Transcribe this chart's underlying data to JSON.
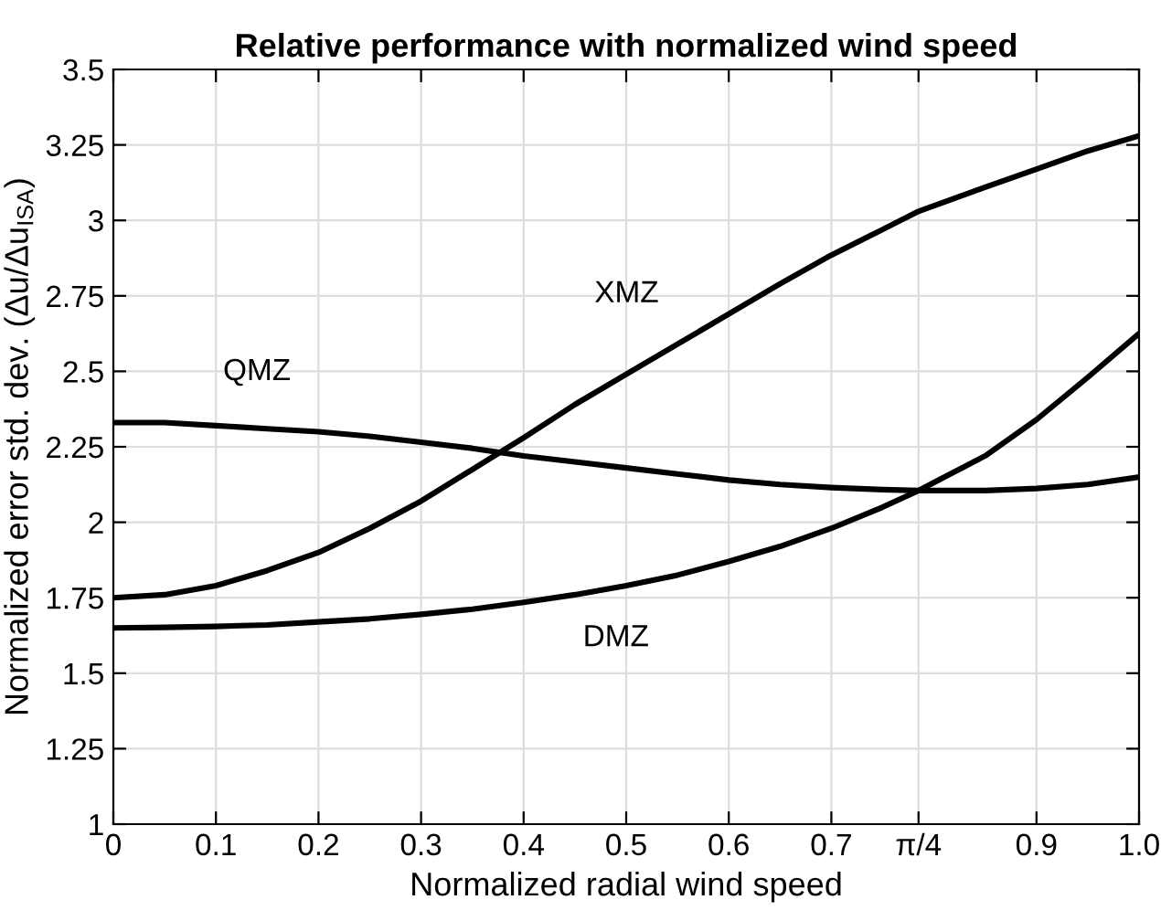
{
  "chart_data": {
    "type": "line",
    "title": "Relative performance with normalized wind speed",
    "xlabel": "Normalized radial wind speed",
    "ylabel": "Normalized error std. dev. (Δu/Δu$_{ISA}$)",
    "x": [
      0,
      0.05,
      0.1,
      0.15,
      0.2,
      0.25,
      0.3,
      0.35,
      0.4,
      0.45,
      0.5,
      0.55,
      0.6,
      0.65,
      0.7,
      0.75,
      0.785,
      0.85,
      0.9,
      0.95,
      1.0
    ],
    "series": [
      {
        "name": "XMZ",
        "color": "#000000",
        "values": [
          1.75,
          1.76,
          1.79,
          1.84,
          1.9,
          1.98,
          2.07,
          2.175,
          2.28,
          2.39,
          2.49,
          2.59,
          2.69,
          2.79,
          2.885,
          2.97,
          3.03,
          3.11,
          3.17,
          3.23,
          3.28
        ]
      },
      {
        "name": "QMZ",
        "color": "#000000",
        "values": [
          2.33,
          2.33,
          2.32,
          2.31,
          2.3,
          2.285,
          2.265,
          2.245,
          2.22,
          2.2,
          2.18,
          2.16,
          2.14,
          2.125,
          2.115,
          2.108,
          2.105,
          2.105,
          2.112,
          2.125,
          2.15
        ]
      },
      {
        "name": "DMZ",
        "color": "#000000",
        "values": [
          1.65,
          1.652,
          1.655,
          1.66,
          1.67,
          1.68,
          1.695,
          1.712,
          1.735,
          1.76,
          1.79,
          1.825,
          1.87,
          1.92,
          1.98,
          2.05,
          2.105,
          2.22,
          2.34,
          2.48,
          2.625
        ]
      }
    ],
    "xlim": [
      0,
      1.0
    ],
    "ylim": [
      1,
      3.5
    ],
    "xticks": [
      0,
      0.1,
      0.2,
      0.3,
      0.4,
      0.5,
      0.6,
      0.7,
      {
        "value": 0.785,
        "label": "π/4"
      },
      0.9,
      {
        "value": 1.0,
        "label": "1.0"
      }
    ],
    "yticks": [
      1,
      1.25,
      1.5,
      1.75,
      2,
      2.25,
      2.5,
      2.75,
      3,
      3.25,
      3.5
    ],
    "grid": true,
    "line_style": "solid"
  }
}
